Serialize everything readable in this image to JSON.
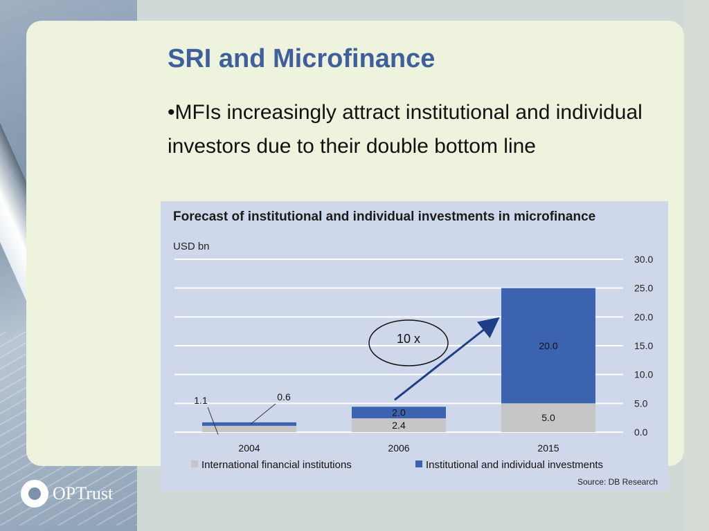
{
  "slide": {
    "title": "SRI and Microfinance",
    "bullet": "•MFIs increasingly attract institutional and individual investors due to their double bottom line"
  },
  "logo": {
    "text": "OPTrust"
  },
  "chart_data": {
    "type": "bar",
    "stacked": true,
    "title": "Forecast of institutional and individual investments in microfinance",
    "unit": "USD bn",
    "categories": [
      "2004",
      "2006",
      "2015"
    ],
    "series": [
      {
        "name": "International financial institutions",
        "values": [
          1.1,
          2.4,
          5.0
        ],
        "labels": [
          "1.1",
          "2.4",
          "5.0"
        ],
        "color": "#c6c6c6"
      },
      {
        "name": "Institutional and individual investments",
        "values": [
          0.6,
          2.0,
          20.0
        ],
        "labels": [
          "0.6",
          "2.0",
          "20.0"
        ],
        "color": "#3b63b0"
      }
    ],
    "ylim": [
      0,
      30
    ],
    "yticks": [
      "0.0",
      "5.0",
      "10.0",
      "15.0",
      "20.0",
      "25.0",
      "30.0"
    ],
    "y_axis_side": "right",
    "grid": true,
    "legend_position": "bottom",
    "annotation": "10 x",
    "source": "Source: DB Research"
  }
}
